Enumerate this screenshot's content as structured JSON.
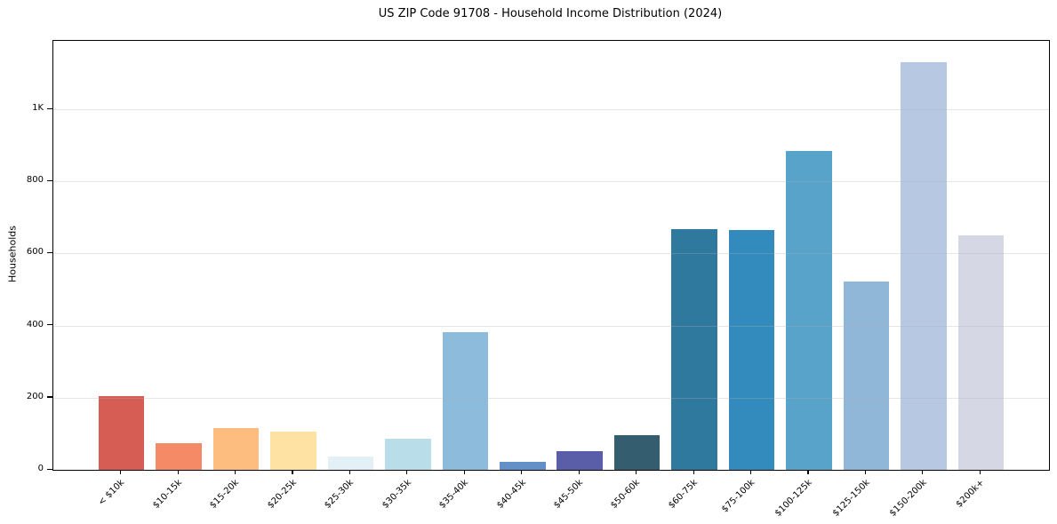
{
  "chart_data": {
    "type": "bar",
    "title": "US ZIP Code 91708 - Household Income Distribution (2024)",
    "xlabel": "",
    "ylabel": "Households",
    "legend": "none",
    "grid": "horizontal",
    "background_color": "#ffffff",
    "spine_color": "#000000",
    "ylim": [
      0,
      1190
    ],
    "categories": [
      "< $10k",
      "$10-15k",
      "$15-20k",
      "$20-25k",
      "$25-30k",
      "$30-35k",
      "$35-40k",
      "$40-45k",
      "$45-50k",
      "$50-60k",
      "$60-75k",
      "$75-100k",
      "$100-125k",
      "$125-150k",
      "$150-200k",
      "$200k+"
    ],
    "values": [
      205,
      73,
      117,
      107,
      38,
      86,
      381,
      22,
      52,
      97,
      668,
      665,
      885,
      523,
      1130,
      651
    ],
    "bar_colors": [
      "#d65d53",
      "#f48a66",
      "#fcbd7f",
      "#fde2a3",
      "#e3f0f5",
      "#badee9",
      "#8cbbdb",
      "#6490c8",
      "#5a5ea8",
      "#345e70",
      "#2f789e",
      "#338abc",
      "#58a3c9",
      "#90b7d8",
      "#b6c8e2",
      "#d6d7e5"
    ],
    "y_ticks": [
      {
        "value": 0,
        "label": "0"
      },
      {
        "value": 200,
        "label": "200"
      },
      {
        "value": 400,
        "label": "400"
      },
      {
        "value": 600,
        "label": "600"
      },
      {
        "value": 800,
        "label": "800"
      },
      {
        "value": 1000,
        "label": "1K"
      }
    ]
  }
}
